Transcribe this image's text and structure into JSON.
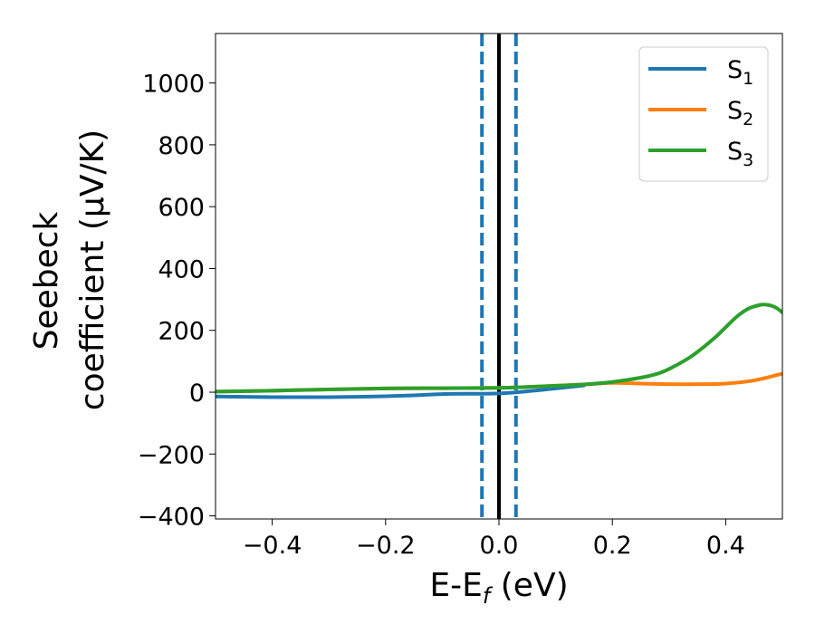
{
  "chart_data": {
    "type": "line",
    "title": "",
    "xlabel": {
      "main": "E-E",
      "sub": "f",
      "unit": " (eV)"
    },
    "ylabel": {
      "line1": "Seebeck",
      "line2": "coefficient  (μV/K)"
    },
    "xlim": [
      -0.5,
      0.5
    ],
    "ylim": [
      -410,
      1160
    ],
    "x_ticks": [
      -0.4,
      -0.2,
      0.0,
      0.2,
      0.4
    ],
    "x_tick_labels": [
      "−0.4",
      "−0.2",
      "0.0",
      "0.2",
      "0.4"
    ],
    "y_ticks": [
      -400,
      -200,
      0,
      200,
      400,
      600,
      800,
      1000
    ],
    "y_tick_labels": [
      "−400",
      "−200",
      "0",
      "200",
      "400",
      "600",
      "800",
      "1000"
    ],
    "grid": false,
    "legend_position": "top-right",
    "reference_lines": [
      {
        "x": 0.0,
        "style": "solid",
        "color": "#000000"
      },
      {
        "x": -0.03,
        "style": "dashed",
        "color": "#1f77b4"
      },
      {
        "x": 0.03,
        "style": "dashed",
        "color": "#1f77b4"
      }
    ],
    "series": [
      {
        "name": "S",
        "sub": "1",
        "color": "#1f77b4",
        "x": [
          -0.5,
          -0.45,
          -0.4,
          -0.35,
          -0.3,
          -0.25,
          -0.2,
          -0.15,
          -0.1,
          -0.05,
          0.0,
          0.05,
          0.1,
          0.15
        ],
        "y": [
          -14,
          -15,
          -16,
          -16,
          -16,
          -15,
          -13,
          -10,
          -6,
          -5,
          -4,
          3,
          12,
          22
        ]
      },
      {
        "name": "S",
        "sub": "2",
        "color": "#ff7f0e",
        "x": [
          -0.5,
          -0.4,
          -0.3,
          -0.2,
          -0.1,
          0.0,
          0.05,
          0.1,
          0.15,
          0.2,
          0.25,
          0.3,
          0.35,
          0.4,
          0.45,
          0.5
        ],
        "y": [
          2,
          5,
          9,
          12,
          13,
          14,
          17,
          21,
          25,
          30,
          28,
          26,
          26,
          28,
          38,
          60
        ]
      },
      {
        "name": "S",
        "sub": "3",
        "color": "#2ca02c",
        "x": [
          -0.5,
          -0.4,
          -0.3,
          -0.2,
          -0.1,
          0.0,
          0.05,
          0.1,
          0.15,
          0.2,
          0.25,
          0.28,
          0.3,
          0.33,
          0.35,
          0.38,
          0.4,
          0.42,
          0.44,
          0.46,
          0.47,
          0.48,
          0.49,
          0.5
        ],
        "y": [
          2,
          5,
          9,
          12,
          13,
          14,
          17,
          21,
          25,
          33,
          47,
          60,
          75,
          105,
          130,
          175,
          210,
          245,
          270,
          282,
          283,
          280,
          272,
          258
        ]
      }
    ]
  }
}
